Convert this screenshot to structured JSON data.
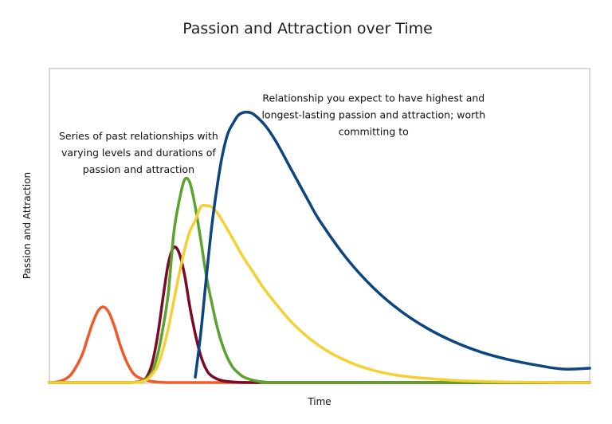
{
  "chart_data": {
    "type": "line",
    "title": "Passion and Attraction over Time",
    "xlabel": "Time",
    "ylabel": "Passion and Attraction",
    "xlim": [
      0,
      100
    ],
    "ylim": [
      0,
      100
    ],
    "x_ticks_shown": false,
    "y_ticks_shown": false,
    "grid": false,
    "legend": "none",
    "series": [
      {
        "color": "#f05a28",
        "x": [
          0,
          2,
          4,
          6,
          7,
          8,
          9,
          10,
          11,
          12,
          13,
          14,
          15,
          16,
          18,
          20,
          22,
          25,
          30,
          40,
          60,
          100
        ],
        "y": [
          0,
          0.5,
          3,
          10,
          16,
          22,
          26.5,
          28,
          26,
          21,
          14.5,
          9,
          5,
          2.5,
          0.8,
          0.2,
          0,
          0,
          0,
          0,
          0,
          0
        ]
      },
      {
        "color": "#7a0a26",
        "x": [
          0,
          10,
          15,
          17,
          18,
          19,
          20,
          21,
          22,
          23,
          24,
          25,
          26,
          27,
          28,
          29,
          30,
          32,
          35,
          40,
          60,
          100
        ],
        "y": [
          0,
          0,
          0,
          0.5,
          2,
          7,
          17,
          31,
          44,
          50,
          48,
          40,
          28,
          18,
          10,
          5,
          2.5,
          0.7,
          0.1,
          0,
          0,
          0
        ]
      },
      {
        "color": "#5ca22e",
        "x": [
          0,
          10,
          15,
          17,
          18,
          19,
          20,
          21,
          22,
          23,
          24,
          25,
          26,
          27,
          28,
          29,
          30,
          31,
          32,
          33,
          34,
          35,
          36,
          38,
          40,
          45,
          100
        ],
        "y": [
          0,
          0,
          0,
          0.5,
          1.5,
          4,
          10,
          20,
          33,
          55,
          67,
          75,
          74,
          65,
          53,
          40,
          30,
          21,
          14,
          9,
          5.5,
          3.5,
          2,
          0.7,
          0.2,
          0,
          0
        ]
      },
      {
        "color": "#f5d033",
        "x": [
          0,
          15,
          17,
          18,
          19,
          20,
          21,
          22,
          23,
          24,
          25,
          26,
          27,
          28,
          29,
          30,
          31,
          32,
          34,
          36,
          38,
          40,
          45,
          50,
          55,
          60,
          65,
          70,
          75,
          80,
          85,
          90,
          95,
          100
        ],
        "y": [
          0,
          0,
          0.3,
          1,
          3,
          6,
          12,
          20,
          30,
          40,
          49,
          56,
          60,
          65,
          65.5,
          65,
          63,
          60,
          53,
          46,
          40,
          34,
          22,
          13.5,
          8,
          4.5,
          2.5,
          1.5,
          0.8,
          0.4,
          0.2,
          0.1,
          0,
          0
        ]
      },
      {
        "color": "#0d4580",
        "x": [
          27,
          28,
          29,
          30,
          31,
          32,
          33,
          34,
          35,
          36,
          37,
          38,
          40,
          42,
          45,
          48,
          50,
          55,
          60,
          65,
          70,
          75,
          80,
          85,
          90,
          95,
          100
        ],
        "y": [
          2,
          18,
          38,
          57,
          72,
          84,
          92,
          96,
          99,
          100,
          100,
          99,
          95,
          89,
          78,
          67,
          60,
          46,
          35,
          26.5,
          20,
          15,
          11.2,
          8.5,
          6.5,
          5,
          5.3
        ]
      }
    ],
    "annotations": [
      {
        "anchor_x": 16.5,
        "anchor_y": 90,
        "lines": [
          "Series of past relationships with",
          "varying levels and durations of",
          "passion and attraction"
        ]
      },
      {
        "anchor_x": 60,
        "anchor_y": 104,
        "lines": [
          "Relationship you expect to have highest and",
          "longest-lasting passion and attraction; worth",
          "committing to"
        ]
      }
    ]
  }
}
